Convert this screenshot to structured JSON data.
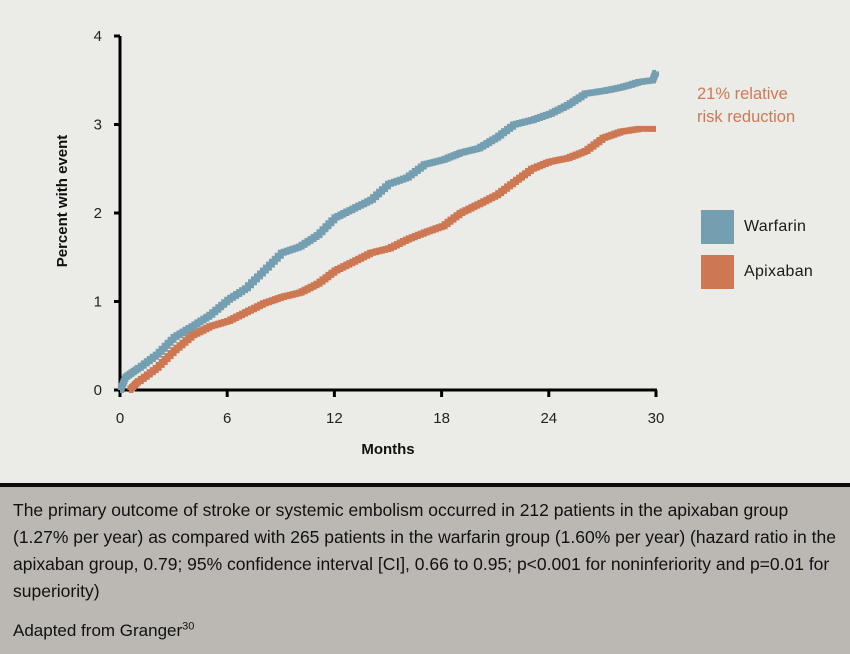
{
  "chart_data": {
    "type": "line",
    "title": "",
    "xlabel": "Months",
    "ylabel": "Percent with event",
    "xlim": [
      0,
      30
    ],
    "ylim": [
      0,
      4
    ],
    "x_ticks": [
      0,
      6,
      12,
      18,
      24,
      30
    ],
    "y_ticks": [
      0,
      1,
      2,
      3,
      4
    ],
    "grid": false,
    "step": true,
    "legend_position": "right",
    "annotation": [
      "21% relative",
      "risk reduction"
    ],
    "series": [
      {
        "name": "Warfarin",
        "color": "#739fb0",
        "x": [
          0,
          0.3,
          1,
          2,
          3,
          4,
          5,
          6,
          7,
          8,
          9,
          10,
          11,
          12,
          13,
          14,
          15,
          16,
          17,
          18,
          19,
          20,
          21,
          22,
          23,
          24,
          25,
          26,
          27,
          28,
          29,
          29.8,
          30
        ],
        "y": [
          0,
          0.15,
          0.25,
          0.4,
          0.6,
          0.72,
          0.85,
          1.02,
          1.15,
          1.35,
          1.55,
          1.62,
          1.75,
          1.95,
          2.05,
          2.15,
          2.33,
          2.4,
          2.55,
          2.6,
          2.68,
          2.73,
          2.85,
          3.0,
          3.05,
          3.12,
          3.22,
          3.35,
          3.38,
          3.42,
          3.48,
          3.5,
          3.6
        ]
      },
      {
        "name": "Apixaban",
        "color": "#cd7753",
        "x": [
          0.5,
          1,
          2,
          3,
          4,
          5,
          6,
          7,
          8,
          9,
          10,
          11,
          12,
          13,
          14,
          15,
          16,
          17,
          18,
          19,
          20,
          21,
          22,
          23,
          24,
          25,
          26,
          27,
          28,
          29,
          30
        ],
        "y": [
          0,
          0.1,
          0.25,
          0.45,
          0.62,
          0.72,
          0.78,
          0.88,
          0.98,
          1.05,
          1.1,
          1.2,
          1.35,
          1.45,
          1.55,
          1.6,
          1.7,
          1.78,
          1.85,
          2.0,
          2.1,
          2.2,
          2.35,
          2.5,
          2.58,
          2.62,
          2.7,
          2.85,
          2.92,
          2.95,
          2.95
        ]
      }
    ]
  },
  "annotation": {
    "line1": "21% relative",
    "line2": "risk reduction"
  },
  "legend": [
    {
      "label": "Warfarin",
      "color": "#739fb0"
    },
    {
      "label": "Apixaban",
      "color": "#cd7753"
    }
  ],
  "caption": {
    "text": "The primary outcome of stroke or systemic embolism occurred in 212 patients in the apixaban group (1.27% per year) as compared with 265 patients in the warfarin group (1.60% per year) (hazard ratio in the apixaban group, 0.79; 95% confidence interval [CI], 0.66 to 0.95; p<0.001 for noninferiority and p=0.01 for superiority)",
    "source": "Adapted from Granger",
    "source_ref": "30"
  }
}
